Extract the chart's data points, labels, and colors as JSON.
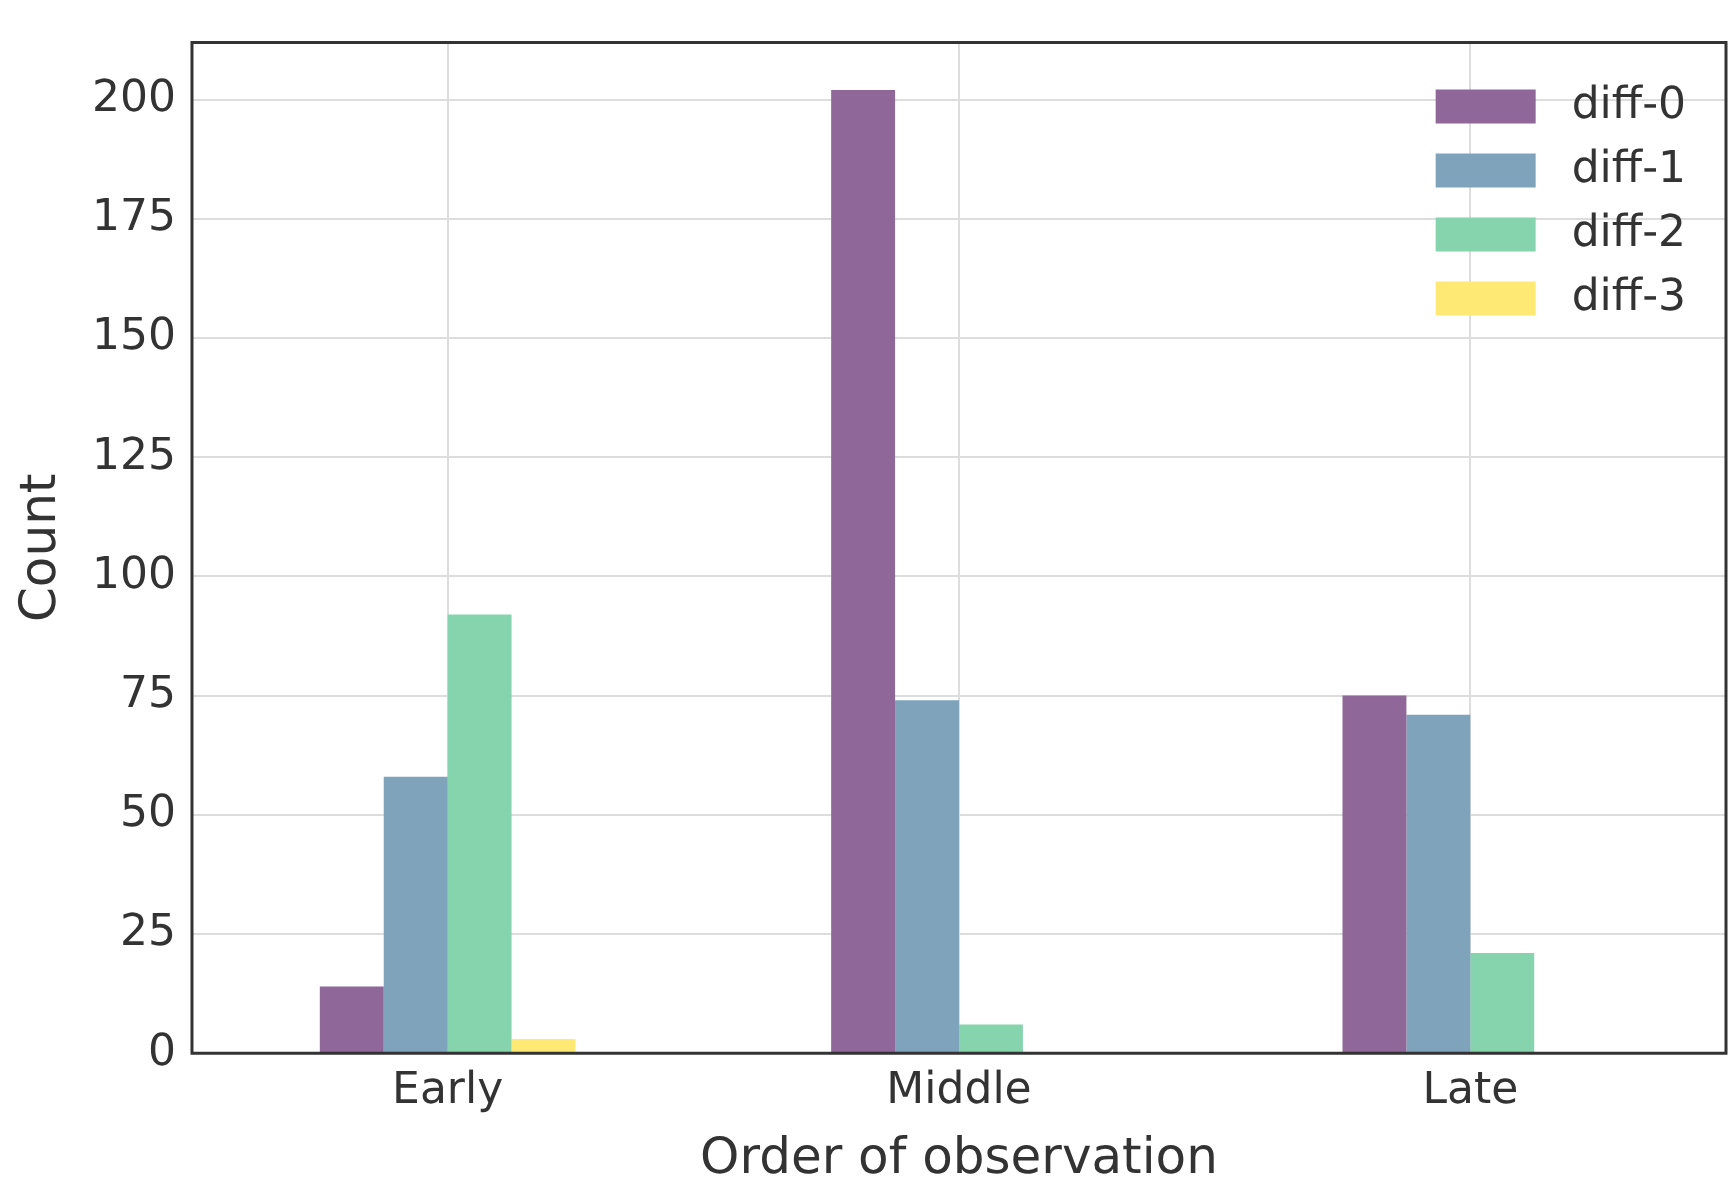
{
  "chart_data": {
    "type": "bar",
    "xlabel": "Order of observation",
    "ylabel": "Count",
    "categories": [
      "Early",
      "Middle",
      "Late"
    ],
    "series": [
      {
        "name": "diff-0",
        "color": "#8f6798",
        "values": [
          14,
          202,
          75
        ]
      },
      {
        "name": "diff-1",
        "color": "#7ea3bb",
        "values": [
          58,
          74,
          71
        ]
      },
      {
        "name": "diff-2",
        "color": "#85d4ae",
        "values": [
          92,
          6,
          21
        ]
      },
      {
        "name": "diff-3",
        "color": "#fde974",
        "values": [
          3,
          0,
          0
        ]
      }
    ],
    "ylim": [
      0,
      212
    ],
    "yticks": [
      0,
      25,
      50,
      75,
      100,
      125,
      150,
      175,
      200
    ],
    "grid": true,
    "legend": "top right"
  }
}
